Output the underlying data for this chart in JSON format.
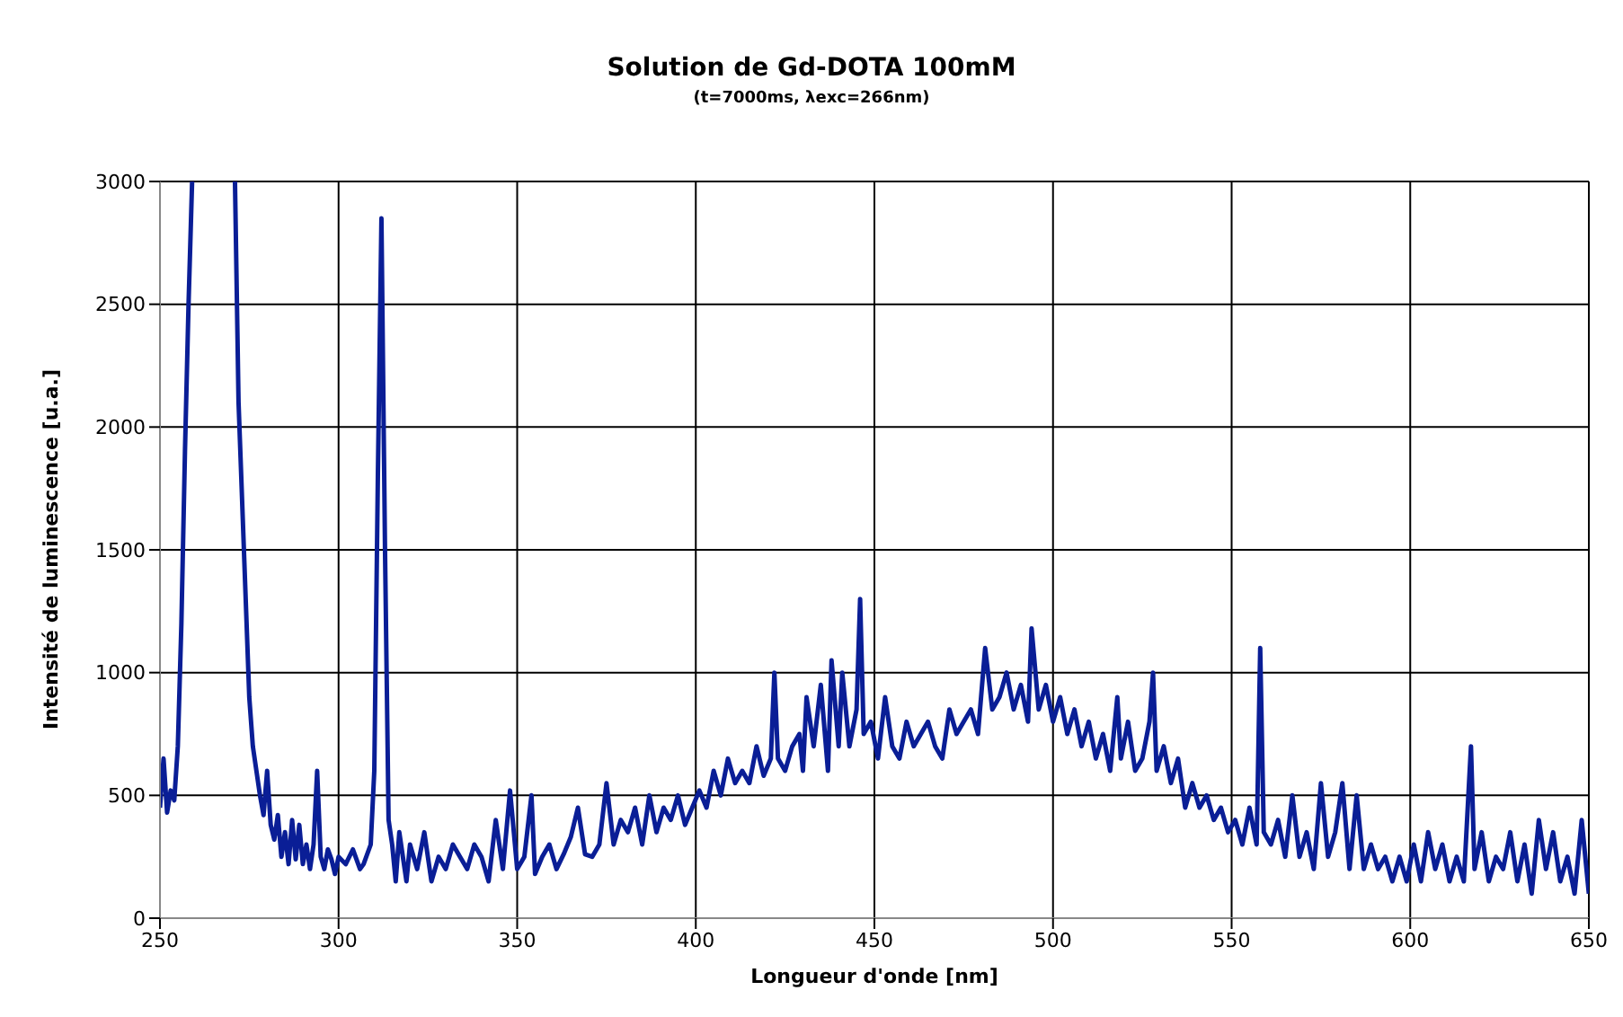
{
  "chart_data": {
    "type": "line",
    "title": "Solution de Gd-DOTA 100mM",
    "subtitle": "(t=7000ms, λexc=266nm)",
    "xlabel": "Longueur d'onde [nm]",
    "ylabel": "Intensité de luminescence [u.a.]",
    "xlim": [
      250,
      650
    ],
    "xticks": [
      250,
      300,
      350,
      400,
      450,
      500,
      550,
      600,
      650
    ],
    "ylim": [
      0,
      3000
    ],
    "yticks": [
      0,
      500,
      1000,
      1500,
      2000,
      2500,
      3000
    ],
    "grid": true,
    "marker": "none",
    "line_style": "solid",
    "x": [
      250,
      251,
      252,
      253,
      254,
      255,
      256,
      257,
      258,
      259,
      265,
      271,
      272,
      273,
      274,
      275,
      276,
      277,
      278,
      279,
      280,
      281,
      282,
      283,
      284,
      285,
      286,
      287,
      288,
      289,
      290,
      291,
      292,
      293,
      294,
      295,
      296,
      297,
      298,
      299,
      300,
      302,
      304,
      306,
      307,
      309,
      310,
      311,
      312,
      313,
      314,
      315,
      316,
      317,
      318,
      319,
      320,
      322,
      324,
      326,
      328,
      330,
      332,
      334,
      336,
      338,
      340,
      342,
      344,
      346,
      348,
      350,
      352,
      354,
      355,
      357,
      359,
      361,
      363,
      365,
      367,
      369,
      371,
      373,
      375,
      377,
      379,
      381,
      383,
      385,
      387,
      389,
      391,
      393,
      395,
      397,
      399,
      401,
      403,
      405,
      407,
      409,
      411,
      413,
      415,
      417,
      419,
      421,
      422,
      423,
      425,
      427,
      429,
      430,
      431,
      433,
      435,
      437,
      438,
      440,
      441,
      443,
      445,
      446,
      447,
      449,
      451,
      453,
      455,
      457,
      459,
      461,
      463,
      465,
      467,
      469,
      471,
      473,
      475,
      477,
      479,
      481,
      483,
      485,
      487,
      489,
      491,
      493,
      494,
      496,
      498,
      500,
      502,
      504,
      506,
      508,
      510,
      512,
      514,
      516,
      518,
      519,
      521,
      523,
      525,
      527,
      528,
      529,
      531,
      533,
      535,
      537,
      539,
      541,
      543,
      545,
      547,
      549,
      551,
      553,
      555,
      557,
      558,
      559,
      561,
      563,
      565,
      567,
      569,
      571,
      573,
      575,
      577,
      579,
      581,
      583,
      585,
      587,
      589,
      591,
      593,
      595,
      597,
      599,
      601,
      603,
      605,
      607,
      609,
      611,
      613,
      615,
      617,
      618,
      620,
      622,
      624,
      626,
      628,
      630,
      632,
      634,
      636,
      638,
      640,
      642,
      644,
      646,
      648,
      650
    ],
    "series": [
      {
        "color": "#0a1e96",
        "values": [
          450,
          650,
          430,
          520,
          480,
          700,
          1200,
          1900,
          2500,
          3000,
          null,
          3000,
          2100,
          1700,
          1300,
          900,
          700,
          600,
          500,
          420,
          600,
          380,
          320,
          420,
          250,
          350,
          220,
          400,
          240,
          380,
          220,
          300,
          200,
          300,
          600,
          250,
          200,
          280,
          240,
          180,
          250,
          220,
          280,
          200,
          220,
          300,
          600,
          1800,
          2850,
          1500,
          400,
          300,
          150,
          350,
          250,
          150,
          300,
          200,
          350,
          150,
          250,
          200,
          300,
          250,
          200,
          300,
          250,
          150,
          400,
          200,
          520,
          200,
          250,
          500,
          180,
          250,
          300,
          200,
          260,
          330,
          450,
          260,
          250,
          300,
          550,
          300,
          400,
          350,
          450,
          300,
          500,
          350,
          450,
          400,
          500,
          380,
          450,
          520,
          450,
          600,
          500,
          650,
          550,
          600,
          550,
          700,
          580,
          650,
          1000,
          650,
          600,
          700,
          750,
          600,
          900,
          700,
          950,
          600,
          1050,
          700,
          1000,
          700,
          850,
          1300,
          750,
          800,
          650,
          900,
          700,
          650,
          800,
          700,
          750,
          800,
          700,
          650,
          850,
          750,
          800,
          850,
          750,
          1100,
          850,
          900,
          1000,
          850,
          950,
          800,
          1180,
          850,
          950,
          800,
          900,
          750,
          850,
          700,
          800,
          650,
          750,
          600,
          900,
          650,
          800,
          600,
          650,
          800,
          1000,
          600,
          700,
          550,
          650,
          450,
          550,
          450,
          500,
          400,
          450,
          350,
          400,
          300,
          450,
          300,
          1100,
          350,
          300,
          400,
          250,
          500,
          250,
          350,
          200,
          550,
          250,
          350,
          550,
          200,
          500,
          200,
          300,
          200,
          250,
          150,
          250,
          150,
          300,
          150,
          350,
          200,
          300,
          150,
          250,
          150,
          700,
          200,
          350,
          150,
          250,
          200,
          350,
          150,
          300,
          100,
          400,
          200,
          350,
          150,
          250,
          100,
          400,
          100
        ]
      }
    ]
  }
}
